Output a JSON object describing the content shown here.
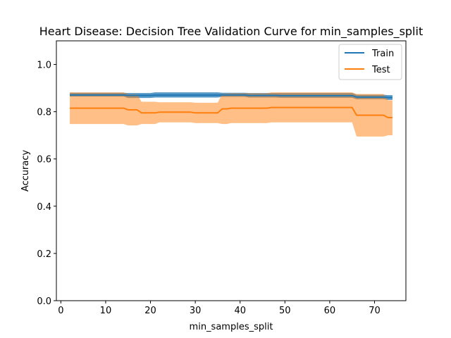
{
  "chart_data": {
    "type": "line",
    "title": "Heart Disease: Decision Tree Validation Curve for min_samples_split",
    "xlabel": "min_samples_split",
    "ylabel": "Accuracy",
    "xlim": [
      -1,
      77
    ],
    "ylim": [
      0.0,
      1.1
    ],
    "xticks": [
      0,
      10,
      20,
      30,
      40,
      50,
      60,
      70
    ],
    "yticks": [
      0.0,
      0.2,
      0.4,
      0.6,
      0.8,
      1.0
    ],
    "ytick_labels": [
      "0.0",
      "0.2",
      "0.4",
      "0.6",
      "0.8",
      "1.0"
    ],
    "grid": false,
    "legend_position": "top-right",
    "x": [
      2,
      3,
      4,
      5,
      6,
      7,
      8,
      9,
      10,
      11,
      12,
      13,
      14,
      15,
      16,
      17,
      18,
      19,
      20,
      21,
      22,
      23,
      24,
      25,
      26,
      27,
      28,
      29,
      30,
      31,
      32,
      33,
      34,
      35,
      36,
      37,
      38,
      39,
      40,
      41,
      42,
      43,
      44,
      45,
      46,
      47,
      48,
      49,
      50,
      51,
      52,
      53,
      54,
      55,
      56,
      57,
      58,
      59,
      60,
      61,
      62,
      63,
      64,
      65,
      66,
      67,
      68,
      69,
      70,
      71,
      72,
      73,
      74
    ],
    "series": [
      {
        "name": "Train",
        "color": "#1f77b4",
        "values": [
          0.871,
          0.871,
          0.871,
          0.871,
          0.871,
          0.871,
          0.871,
          0.871,
          0.871,
          0.871,
          0.871,
          0.871,
          0.871,
          0.869,
          0.869,
          0.869,
          0.869,
          0.869,
          0.869,
          0.87,
          0.87,
          0.87,
          0.87,
          0.87,
          0.87,
          0.87,
          0.87,
          0.87,
          0.87,
          0.87,
          0.87,
          0.87,
          0.87,
          0.87,
          0.871,
          0.871,
          0.871,
          0.871,
          0.871,
          0.871,
          0.869,
          0.869,
          0.869,
          0.869,
          0.869,
          0.869,
          0.869,
          0.868,
          0.868,
          0.868,
          0.868,
          0.868,
          0.868,
          0.868,
          0.868,
          0.868,
          0.868,
          0.868,
          0.868,
          0.868,
          0.868,
          0.868,
          0.868,
          0.868,
          0.862,
          0.862,
          0.862,
          0.862,
          0.862,
          0.862,
          0.862,
          0.86,
          0.86
        ],
        "lower": [
          0.864,
          0.864,
          0.864,
          0.864,
          0.864,
          0.864,
          0.864,
          0.864,
          0.864,
          0.864,
          0.864,
          0.864,
          0.864,
          0.858,
          0.858,
          0.858,
          0.858,
          0.858,
          0.858,
          0.86,
          0.86,
          0.86,
          0.86,
          0.86,
          0.86,
          0.86,
          0.86,
          0.86,
          0.86,
          0.86,
          0.86,
          0.86,
          0.86,
          0.86,
          0.863,
          0.863,
          0.863,
          0.863,
          0.863,
          0.863,
          0.86,
          0.86,
          0.86,
          0.86,
          0.86,
          0.86,
          0.86,
          0.859,
          0.859,
          0.859,
          0.859,
          0.859,
          0.859,
          0.859,
          0.859,
          0.859,
          0.859,
          0.859,
          0.859,
          0.859,
          0.859,
          0.859,
          0.859,
          0.859,
          0.853,
          0.853,
          0.853,
          0.853,
          0.853,
          0.853,
          0.853,
          0.85,
          0.85
        ],
        "upper": [
          0.88,
          0.88,
          0.88,
          0.88,
          0.88,
          0.88,
          0.88,
          0.88,
          0.88,
          0.88,
          0.88,
          0.88,
          0.88,
          0.879,
          0.879,
          0.879,
          0.879,
          0.879,
          0.879,
          0.882,
          0.882,
          0.882,
          0.882,
          0.882,
          0.882,
          0.882,
          0.882,
          0.882,
          0.882,
          0.882,
          0.882,
          0.882,
          0.882,
          0.882,
          0.88,
          0.88,
          0.88,
          0.88,
          0.88,
          0.88,
          0.879,
          0.879,
          0.879,
          0.879,
          0.879,
          0.879,
          0.879,
          0.879,
          0.879,
          0.879,
          0.879,
          0.879,
          0.879,
          0.879,
          0.879,
          0.879,
          0.879,
          0.879,
          0.879,
          0.879,
          0.879,
          0.879,
          0.879,
          0.879,
          0.872,
          0.872,
          0.872,
          0.872,
          0.872,
          0.872,
          0.872,
          0.87,
          0.87
        ]
      },
      {
        "name": "Test",
        "color": "#ff7f0e",
        "values": [
          0.815,
          0.815,
          0.815,
          0.815,
          0.815,
          0.815,
          0.815,
          0.815,
          0.815,
          0.815,
          0.815,
          0.815,
          0.815,
          0.808,
          0.808,
          0.808,
          0.795,
          0.795,
          0.795,
          0.795,
          0.798,
          0.798,
          0.798,
          0.798,
          0.798,
          0.798,
          0.798,
          0.798,
          0.795,
          0.795,
          0.795,
          0.795,
          0.795,
          0.795,
          0.812,
          0.812,
          0.815,
          0.815,
          0.815,
          0.815,
          0.815,
          0.815,
          0.815,
          0.815,
          0.815,
          0.818,
          0.818,
          0.818,
          0.818,
          0.818,
          0.818,
          0.818,
          0.818,
          0.818,
          0.818,
          0.818,
          0.818,
          0.818,
          0.818,
          0.818,
          0.818,
          0.818,
          0.818,
          0.818,
          0.785,
          0.785,
          0.785,
          0.785,
          0.785,
          0.785,
          0.785,
          0.775,
          0.775
        ],
        "lower": [
          0.748,
          0.748,
          0.748,
          0.748,
          0.748,
          0.748,
          0.748,
          0.748,
          0.748,
          0.748,
          0.748,
          0.748,
          0.748,
          0.742,
          0.742,
          0.742,
          0.748,
          0.748,
          0.748,
          0.748,
          0.755,
          0.755,
          0.755,
          0.755,
          0.755,
          0.755,
          0.755,
          0.755,
          0.752,
          0.752,
          0.752,
          0.752,
          0.752,
          0.752,
          0.748,
          0.748,
          0.752,
          0.752,
          0.752,
          0.752,
          0.752,
          0.752,
          0.752,
          0.752,
          0.752,
          0.755,
          0.755,
          0.755,
          0.755,
          0.755,
          0.755,
          0.755,
          0.755,
          0.755,
          0.755,
          0.755,
          0.755,
          0.755,
          0.755,
          0.755,
          0.755,
          0.755,
          0.755,
          0.755,
          0.695,
          0.695,
          0.695,
          0.695,
          0.695,
          0.695,
          0.695,
          0.7,
          0.7
        ],
        "upper": [
          0.882,
          0.882,
          0.882,
          0.882,
          0.882,
          0.882,
          0.882,
          0.882,
          0.882,
          0.882,
          0.882,
          0.882,
          0.882,
          0.874,
          0.874,
          0.874,
          0.842,
          0.842,
          0.842,
          0.842,
          0.84,
          0.84,
          0.84,
          0.84,
          0.84,
          0.84,
          0.84,
          0.84,
          0.838,
          0.838,
          0.838,
          0.838,
          0.838,
          0.838,
          0.876,
          0.876,
          0.878,
          0.878,
          0.878,
          0.878,
          0.878,
          0.878,
          0.878,
          0.878,
          0.878,
          0.882,
          0.882,
          0.882,
          0.882,
          0.882,
          0.882,
          0.882,
          0.882,
          0.882,
          0.882,
          0.882,
          0.882,
          0.882,
          0.882,
          0.882,
          0.882,
          0.882,
          0.882,
          0.882,
          0.875,
          0.875,
          0.875,
          0.875,
          0.875,
          0.875,
          0.875,
          0.848,
          0.848
        ]
      }
    ]
  }
}
